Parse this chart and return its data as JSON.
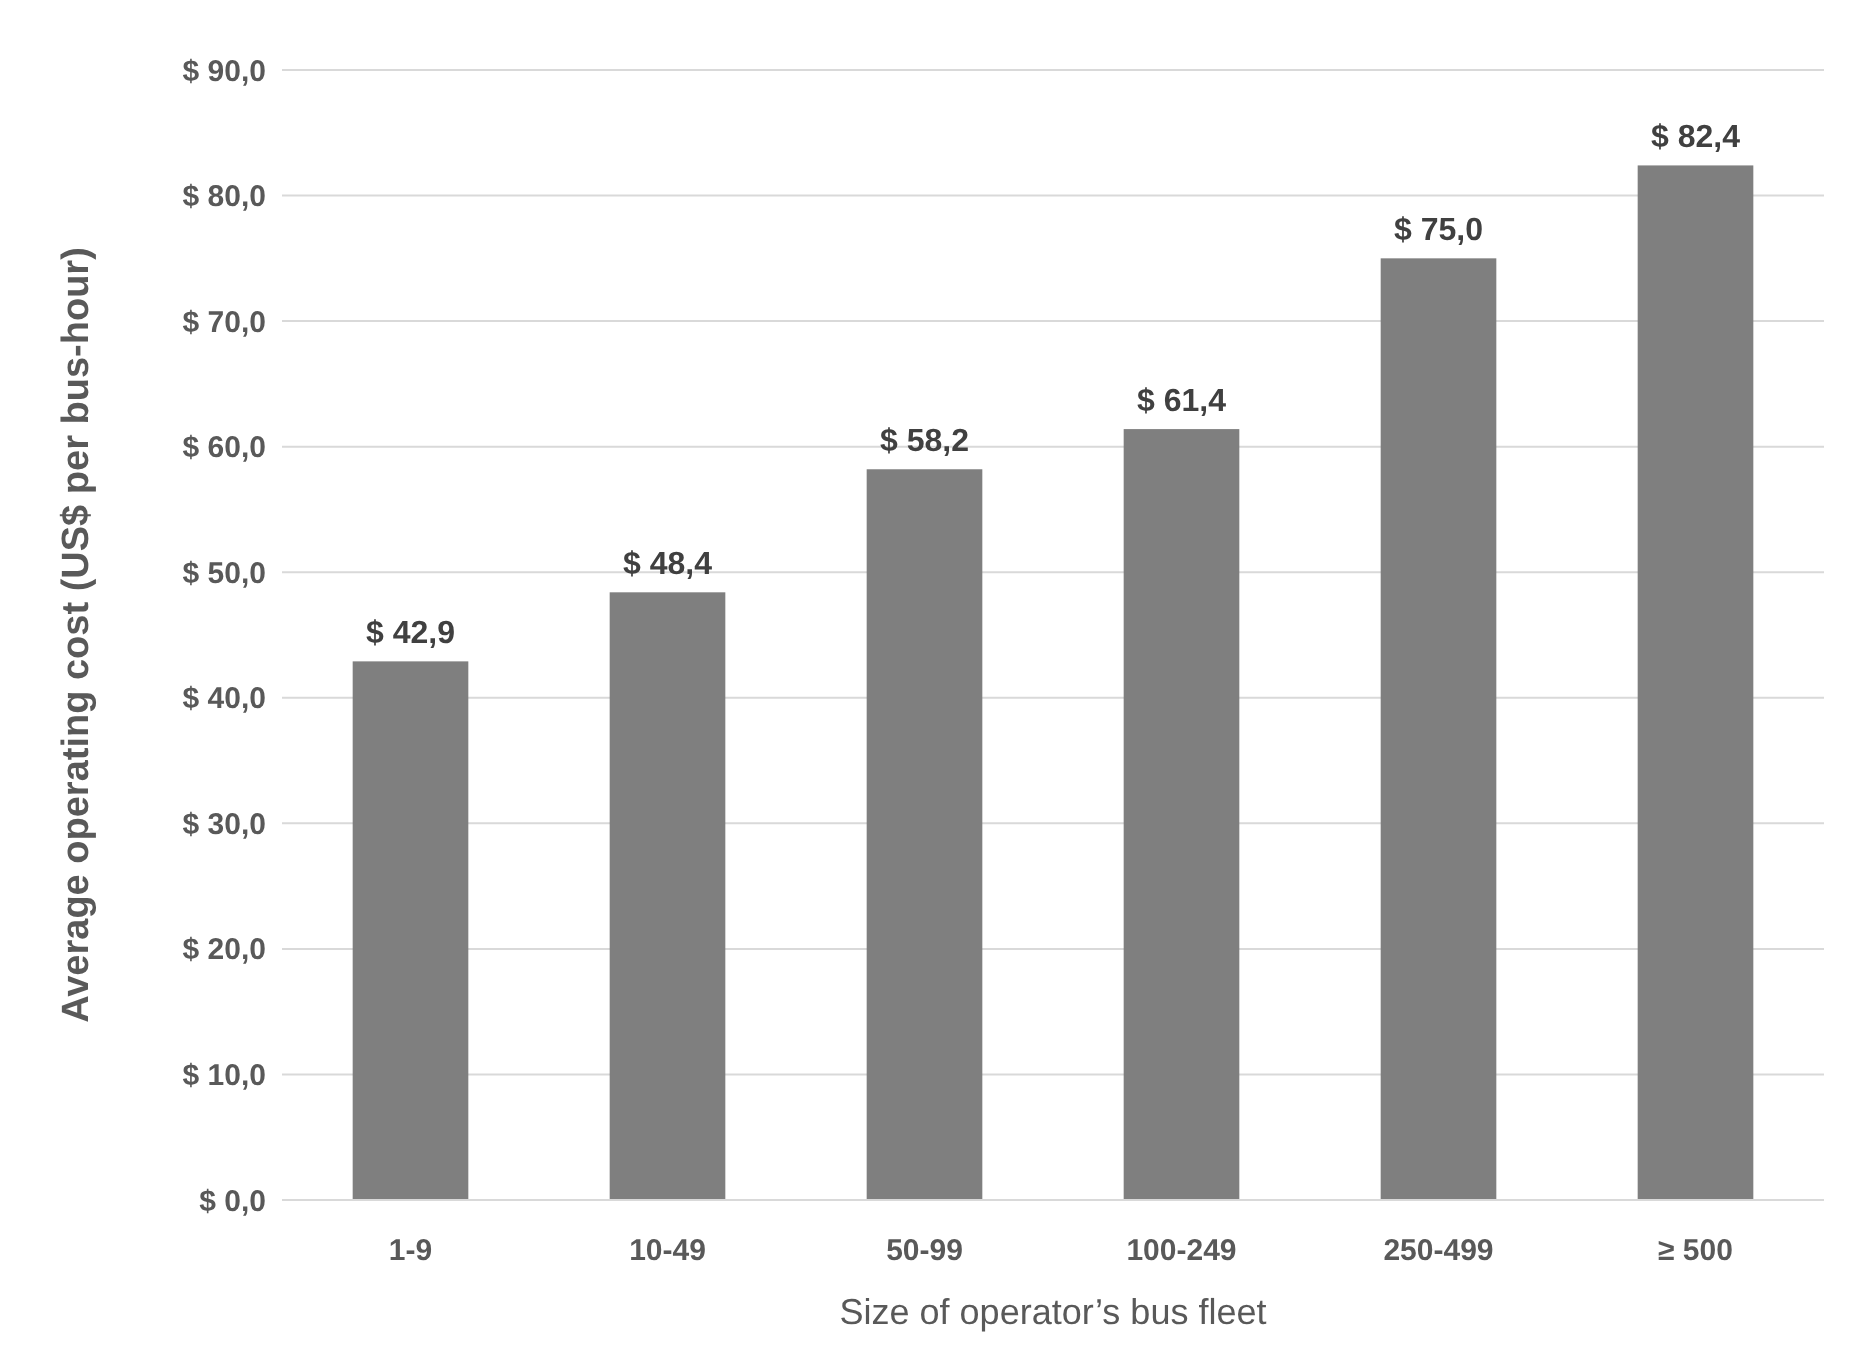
{
  "chart_data": {
    "type": "bar",
    "xlabel": "Size of operator’s bus fleet",
    "ylabel": "Average operating cost (US$ per bus-hour)",
    "categories": [
      "1-9",
      "10-49",
      "50-99",
      "100-249",
      "250-499",
      "≥ 500"
    ],
    "values": [
      42.9,
      48.4,
      58.2,
      61.4,
      75.0,
      82.4
    ],
    "value_labels": [
      "$ 42,9",
      "$ 48,4",
      "$ 58,2",
      "$ 61,4",
      "$ 75,0",
      "$ 82,4"
    ],
    "color": "#7f7f7f",
    "ylim": [
      0,
      90
    ],
    "yticks": [
      {
        "value": 0,
        "label": "$ 0,0"
      },
      {
        "value": 10,
        "label": "$ 10,0"
      },
      {
        "value": 20,
        "label": "$ 20,0"
      },
      {
        "value": 30,
        "label": "$ 30,0"
      },
      {
        "value": 40,
        "label": "$ 40,0"
      },
      {
        "value": 50,
        "label": "$ 50,0"
      },
      {
        "value": 60,
        "label": "$ 60,0"
      },
      {
        "value": 70,
        "label": "$ 70,0"
      },
      {
        "value": 80,
        "label": "$ 80,0"
      },
      {
        "value": 90,
        "label": "$ 90,0"
      }
    ],
    "grid": "y"
  }
}
